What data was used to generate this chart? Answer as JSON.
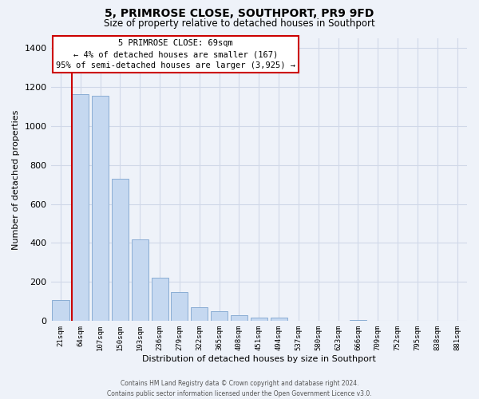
{
  "title": "5, PRIMROSE CLOSE, SOUTHPORT, PR9 9FD",
  "subtitle": "Size of property relative to detached houses in Southport",
  "xlabel": "Distribution of detached houses by size in Southport",
  "ylabel": "Number of detached properties",
  "bin_labels": [
    "21sqm",
    "64sqm",
    "107sqm",
    "150sqm",
    "193sqm",
    "236sqm",
    "279sqm",
    "322sqm",
    "365sqm",
    "408sqm",
    "451sqm",
    "494sqm",
    "537sqm",
    "580sqm",
    "623sqm",
    "666sqm",
    "709sqm",
    "752sqm",
    "795sqm",
    "838sqm",
    "881sqm"
  ],
  "bar_values": [
    107,
    1160,
    1155,
    730,
    420,
    220,
    148,
    72,
    50,
    32,
    18,
    18,
    0,
    0,
    0,
    5,
    0,
    0,
    0,
    0,
    0
  ],
  "bar_color": "#c5d8f0",
  "bar_edge_color": "#8aadd4",
  "annotation_title": "5 PRIMROSE CLOSE: 69sqm",
  "annotation_line1": "← 4% of detached houses are smaller (167)",
  "annotation_line2": "95% of semi-detached houses are larger (3,925) →",
  "annotation_box_color": "#ffffff",
  "annotation_box_edge": "#cc0000",
  "property_line_color": "#cc0000",
  "ylim": [
    0,
    1450
  ],
  "yticks": [
    0,
    200,
    400,
    600,
    800,
    1000,
    1200,
    1400
  ],
  "footer_line1": "Contains HM Land Registry data © Crown copyright and database right 2024.",
  "footer_line2": "Contains public sector information licensed under the Open Government Licence v3.0.",
  "background_color": "#eef2f9",
  "grid_color": "#d0d8e8"
}
